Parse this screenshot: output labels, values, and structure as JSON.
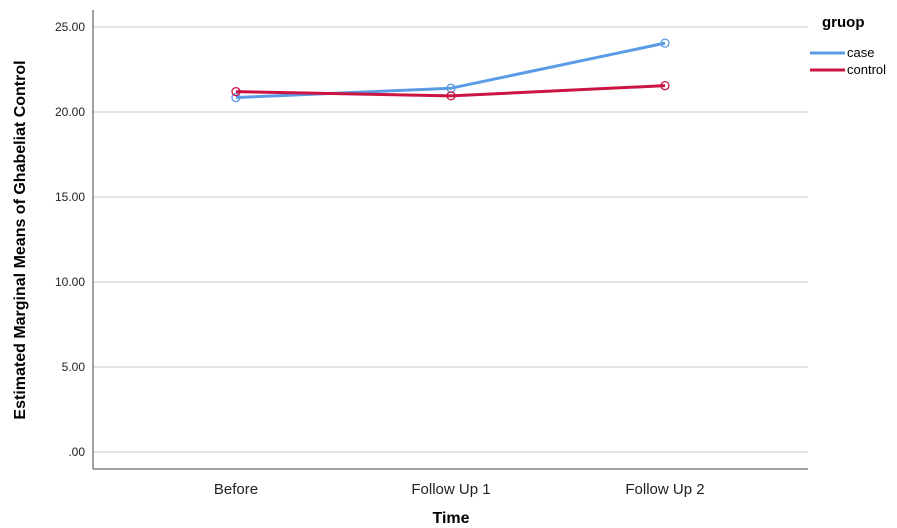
{
  "chart_data": {
    "type": "line",
    "title": "",
    "xlabel": "Time",
    "ylabel": "Estimated Marginal Means of Ghabeliat Control",
    "categories": [
      "Before",
      "Follow Up 1",
      "Follow Up 2"
    ],
    "ylim": [
      -1.0,
      26.0
    ],
    "yticks": [
      0,
      5,
      10,
      15,
      20,
      25
    ],
    "ytick_labels": [
      ".00",
      "5.00",
      "10.00",
      "15.00",
      "20.00",
      "25.00"
    ],
    "grid": true,
    "legend": {
      "title": "gruop",
      "position": "top-right"
    },
    "series": [
      {
        "name": "case",
        "color": "#5b9be6",
        "values": [
          20.85,
          21.4,
          24.05
        ]
      },
      {
        "name": "control",
        "color": "#cc1443",
        "values": [
          21.2,
          20.95,
          21.55
        ]
      }
    ]
  }
}
